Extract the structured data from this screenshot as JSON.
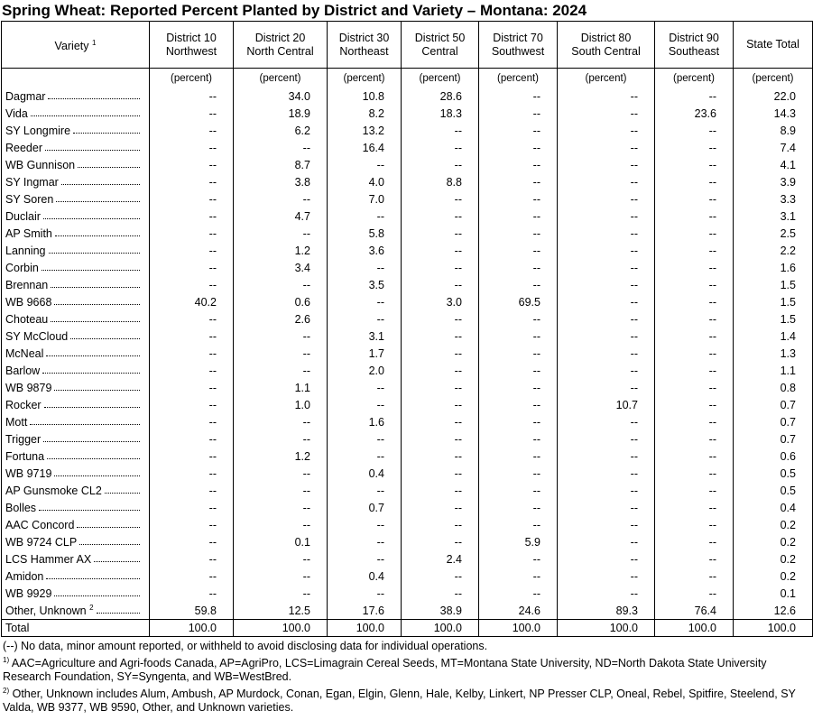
{
  "title": "Spring Wheat: Reported Percent Planted by District and Variety – Montana: 2024",
  "table": {
    "header": [
      {
        "lines": [
          "Variety"
        ],
        "note": "1"
      },
      {
        "lines": [
          "District 10",
          "Northwest"
        ]
      },
      {
        "lines": [
          "District 20",
          "North Central"
        ]
      },
      {
        "lines": [
          "District 30",
          "Northeast"
        ]
      },
      {
        "lines": [
          "District 50",
          "Central"
        ]
      },
      {
        "lines": [
          "District 70",
          "Southwest"
        ]
      },
      {
        "lines": [
          "District 80",
          "South Central"
        ]
      },
      {
        "lines": [
          "District 90",
          "Southeast"
        ]
      },
      {
        "lines": [
          "State Total"
        ]
      }
    ],
    "units": [
      "(percent)",
      "(percent)",
      "(percent)",
      "(percent)",
      "(percent)",
      "(percent)",
      "(percent)",
      "(percent)"
    ],
    "rows": [
      {
        "variety": "Dagmar",
        "values": [
          "--",
          "34.0",
          "10.8",
          "28.6",
          "--",
          "--",
          "--",
          "22.0"
        ]
      },
      {
        "variety": "Vida",
        "values": [
          "--",
          "18.9",
          "8.2",
          "18.3",
          "--",
          "--",
          "23.6",
          "14.3"
        ]
      },
      {
        "variety": "SY Longmire",
        "values": [
          "--",
          "6.2",
          "13.2",
          "--",
          "--",
          "--",
          "--",
          "8.9"
        ]
      },
      {
        "variety": "Reeder",
        "values": [
          "--",
          "--",
          "16.4",
          "--",
          "--",
          "--",
          "--",
          "7.4"
        ]
      },
      {
        "variety": "WB Gunnison",
        "values": [
          "--",
          "8.7",
          "--",
          "--",
          "--",
          "--",
          "--",
          "4.1"
        ]
      },
      {
        "variety": "SY Ingmar",
        "values": [
          "--",
          "3.8",
          "4.0",
          "8.8",
          "--",
          "--",
          "--",
          "3.9"
        ]
      },
      {
        "variety": "SY Soren",
        "values": [
          "--",
          "--",
          "7.0",
          "--",
          "--",
          "--",
          "--",
          "3.3"
        ]
      },
      {
        "variety": "Duclair",
        "values": [
          "--",
          "4.7",
          "--",
          "--",
          "--",
          "--",
          "--",
          "3.1"
        ]
      },
      {
        "variety": "AP Smith",
        "values": [
          "--",
          "--",
          "5.8",
          "--",
          "--",
          "--",
          "--",
          "2.5"
        ]
      },
      {
        "variety": "Lanning",
        "values": [
          "--",
          "1.2",
          "3.6",
          "--",
          "--",
          "--",
          "--",
          "2.2"
        ]
      },
      {
        "variety": "Corbin",
        "values": [
          "--",
          "3.4",
          "--",
          "--",
          "--",
          "--",
          "--",
          "1.6"
        ]
      },
      {
        "variety": "Brennan",
        "values": [
          "--",
          "--",
          "3.5",
          "--",
          "--",
          "--",
          "--",
          "1.5"
        ]
      },
      {
        "variety": "WB 9668",
        "values": [
          "40.2",
          "0.6",
          "--",
          "3.0",
          "69.5",
          "--",
          "--",
          "1.5"
        ]
      },
      {
        "variety": "Choteau",
        "values": [
          "--",
          "2.6",
          "--",
          "--",
          "--",
          "--",
          "--",
          "1.5"
        ]
      },
      {
        "variety": "SY McCloud",
        "values": [
          "--",
          "--",
          "3.1",
          "--",
          "--",
          "--",
          "--",
          "1.4"
        ]
      },
      {
        "variety": "McNeal",
        "values": [
          "--",
          "--",
          "1.7",
          "--",
          "--",
          "--",
          "--",
          "1.3"
        ]
      },
      {
        "variety": "Barlow",
        "values": [
          "--",
          "--",
          "2.0",
          "--",
          "--",
          "--",
          "--",
          "1.1"
        ]
      },
      {
        "variety": "WB 9879",
        "values": [
          "--",
          "1.1",
          "--",
          "--",
          "--",
          "--",
          "--",
          "0.8"
        ]
      },
      {
        "variety": "Rocker",
        "values": [
          "--",
          "1.0",
          "--",
          "--",
          "--",
          "10.7",
          "--",
          "0.7"
        ]
      },
      {
        "variety": "Mott",
        "values": [
          "--",
          "--",
          "1.6",
          "--",
          "--",
          "--",
          "--",
          "0.7"
        ]
      },
      {
        "variety": "Trigger",
        "values": [
          "--",
          "--",
          "--",
          "--",
          "--",
          "--",
          "--",
          "0.7"
        ]
      },
      {
        "variety": "Fortuna",
        "values": [
          "--",
          "1.2",
          "--",
          "--",
          "--",
          "--",
          "--",
          "0.6"
        ]
      },
      {
        "variety": "WB 9719",
        "values": [
          "--",
          "--",
          "0.4",
          "--",
          "--",
          "--",
          "--",
          "0.5"
        ]
      },
      {
        "variety": "AP Gunsmoke CL2",
        "values": [
          "--",
          "--",
          "--",
          "--",
          "--",
          "--",
          "--",
          "0.5"
        ]
      },
      {
        "variety": "Bolles",
        "values": [
          "--",
          "--",
          "0.7",
          "--",
          "--",
          "--",
          "--",
          "0.4"
        ]
      },
      {
        "variety": "AAC Concord",
        "values": [
          "--",
          "--",
          "--",
          "--",
          "--",
          "--",
          "--",
          "0.2"
        ]
      },
      {
        "variety": "WB 9724 CLP",
        "values": [
          "--",
          "0.1",
          "--",
          "--",
          "5.9",
          "--",
          "--",
          "0.2"
        ]
      },
      {
        "variety": "LCS Hammer AX",
        "values": [
          "--",
          "--",
          "--",
          "2.4",
          "--",
          "--",
          "--",
          "0.2"
        ]
      },
      {
        "variety": "Amidon",
        "values": [
          "--",
          "--",
          "0.4",
          "--",
          "--",
          "--",
          "--",
          "0.2"
        ]
      },
      {
        "variety": "WB 9929",
        "values": [
          "--",
          "--",
          "--",
          "--",
          "--",
          "--",
          "--",
          "0.1"
        ]
      },
      {
        "variety": "Other, Unknown",
        "note": "2",
        "values": [
          "59.8",
          "12.5",
          "17.6",
          "38.9",
          "24.6",
          "89.3",
          "76.4",
          "12.6"
        ]
      }
    ],
    "total": {
      "label": "Total",
      "values": [
        "100.0",
        "100.0",
        "100.0",
        "100.0",
        "100.0",
        "100.0",
        "100.0",
        "100.0"
      ]
    }
  },
  "footnotes": [
    {
      "text": "(--) No data, minor amount reported, or withheld to avoid disclosing data for individual operations."
    },
    {
      "marker": "1)",
      "text": "AAC=Agriculture and Agri-foods Canada, AP=AgriPro, LCS=Limagrain Cereal Seeds, MT=Montana State University, ND=North Dakota State University Research Foundation, SY=Syngenta, and WB=WestBred."
    },
    {
      "marker": "2)",
      "text": "Other, Unknown includes Alum, Ambush, AP Murdock, Conan, Egan, Elgin, Glenn, Hale, Kelby, Linkert, NP Presser CLP, Oneal, Rebel, Spitfire, Steelend, SY Valda, WB 9377, WB 9590, Other, and Unknown varieties."
    }
  ]
}
